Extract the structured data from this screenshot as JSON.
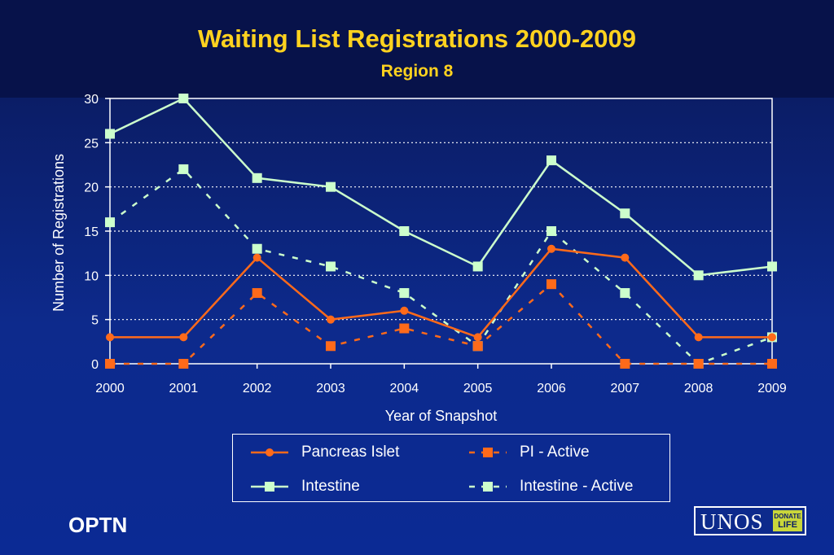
{
  "slide": {
    "title": "Waiting List Registrations 2000-2009",
    "subtitle": "Region 8",
    "footer_left": "OPTN",
    "logo": {
      "text": "UNOS",
      "badge_top": "DONATE",
      "badge_bottom": "LIFE"
    }
  },
  "chart_data": {
    "type": "line",
    "x": [
      "2000",
      "2001",
      "2002",
      "2003",
      "2004",
      "2005",
      "2006",
      "2007",
      "2008",
      "2009"
    ],
    "xlabel": "Year of Snapshot",
    "ylabel": "Number of Registrations",
    "ylim": [
      0,
      30
    ],
    "yticks": [
      0,
      5,
      10,
      15,
      20,
      25,
      30
    ],
    "grid": "horizontal-dotted",
    "legend_position": "bottom",
    "series": [
      {
        "name": "Pancreas Islet",
        "values": [
          3,
          3,
          12,
          5,
          6,
          3,
          13,
          12,
          3,
          3
        ],
        "color": "#ff6a1a",
        "dash": "solid",
        "marker": "circle"
      },
      {
        "name": "PI - Active",
        "values": [
          0,
          0,
          8,
          2,
          4,
          2,
          9,
          0,
          0,
          0
        ],
        "color": "#ff6a1a",
        "dash": "dashed",
        "marker": "square"
      },
      {
        "name": "Intestine",
        "values": [
          26,
          30,
          21,
          20,
          15,
          11,
          23,
          17,
          10,
          11
        ],
        "color": "#ccffcc",
        "dash": "solid",
        "marker": "square"
      },
      {
        "name": "Intestine - Active",
        "values": [
          16,
          22,
          13,
          11,
          8,
          2,
          15,
          8,
          0,
          3
        ],
        "color": "#ccffcc",
        "dash": "dashed",
        "marker": "square"
      }
    ]
  }
}
